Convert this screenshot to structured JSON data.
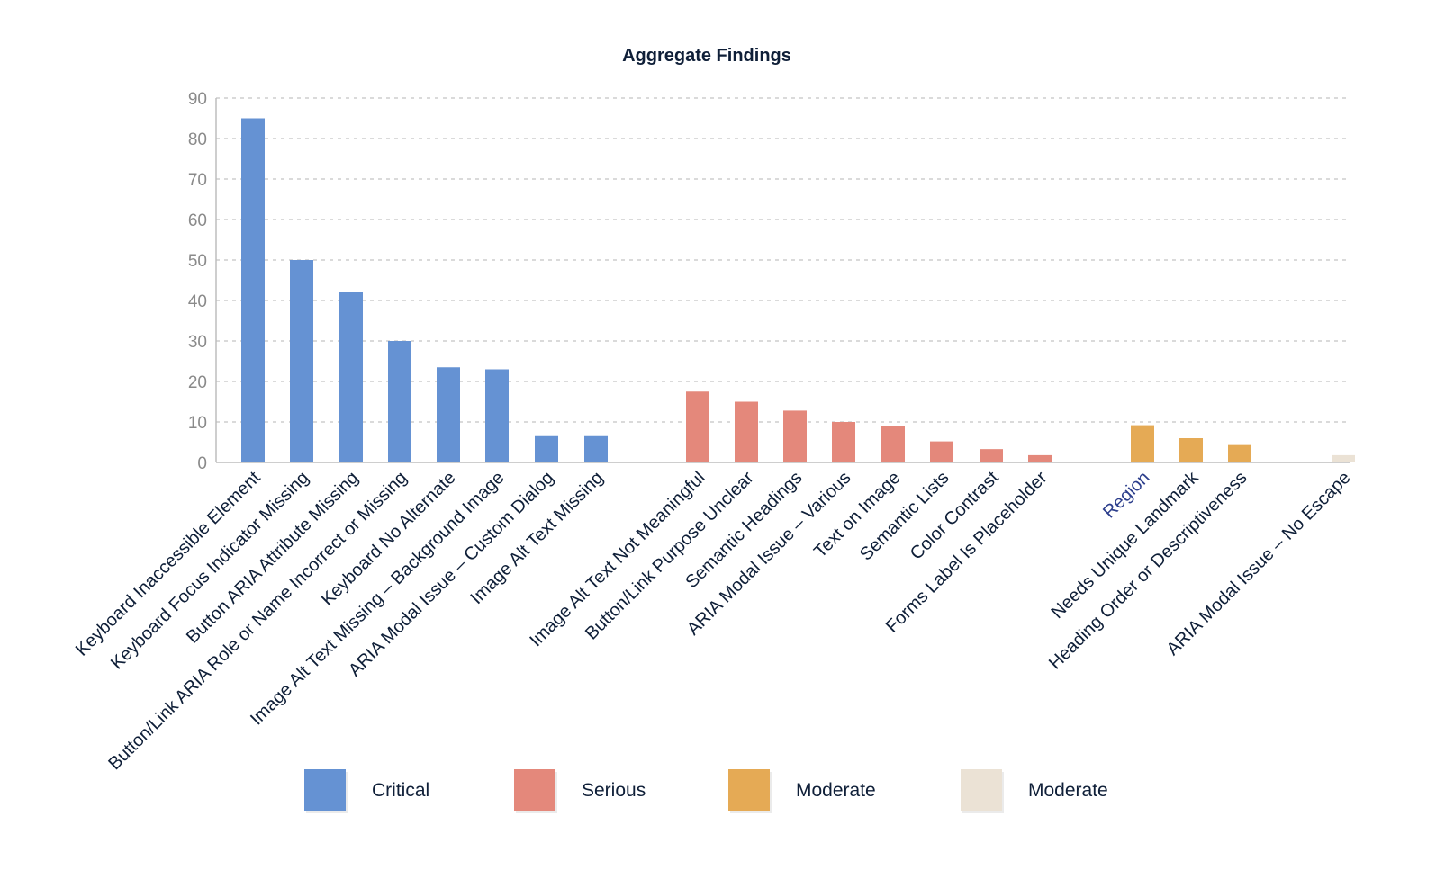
{
  "chart_data": {
    "type": "bar",
    "title": "Aggregate Findings",
    "xlabel": "",
    "ylabel": "",
    "ylim": [
      0,
      90
    ],
    "yticks": [
      0,
      10,
      20,
      30,
      40,
      50,
      60,
      70,
      80,
      90
    ],
    "grid": true,
    "legend_position": "bottom",
    "groups": [
      {
        "name": "Critical",
        "color": "#6592d3",
        "categories": [
          "Keyboard Inaccessible Element",
          "Keyboard Focus Indicator Missing",
          "Button ARIA Attribute Missing",
          "Button/Link ARIA Role or Name Incorrect or Missing",
          "Keyboard No Alternate",
          "Image Alt Text Missing – Background Image",
          "ARIA Modal Issue – Custom Dialog",
          "Image Alt Text Missing"
        ],
        "values": [
          85,
          50,
          42,
          30,
          23.5,
          23,
          6.5,
          6.5
        ]
      },
      {
        "name": "Serious",
        "color": "#e4887b",
        "categories": [
          "Image Alt Text Not Meaningful",
          "Button/Link Purpose Unclear",
          "Semantic Headings",
          "ARIA Modal Issue – Various",
          "Text on Image",
          "Semantic Lists",
          "Color Contrast",
          "Forms Label Is Placeholder"
        ],
        "values": [
          17.5,
          15,
          12.8,
          10,
          9,
          5.2,
          3.3,
          1.8
        ]
      },
      {
        "name": "Moderate",
        "color": "#e5aa55",
        "categories": [
          "Region",
          "Needs Unique Landmark",
          "Heading Order or Descriptiveness"
        ],
        "values": [
          9.2,
          6,
          4.3
        ]
      },
      {
        "name": "Moderate",
        "color": "#ebe2d5",
        "categories": [
          "ARIA Modal Issue – No Escape"
        ],
        "values": [
          1.8
        ]
      }
    ],
    "legend": [
      "Critical",
      "Serious",
      "Moderate",
      "Moderate"
    ]
  }
}
